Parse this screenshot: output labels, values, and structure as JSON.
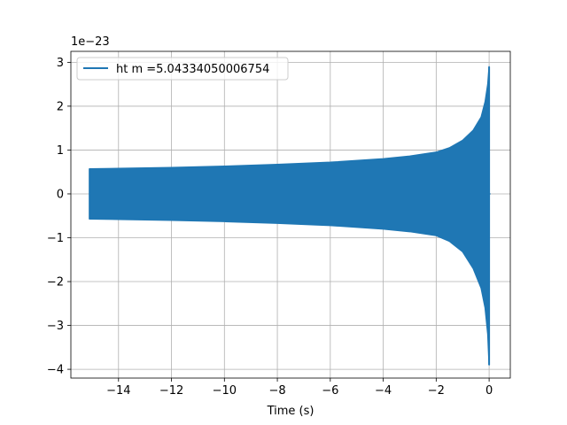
{
  "chart_data": {
    "type": "line",
    "title": "",
    "xlabel": "Time (s)",
    "ylabel": "",
    "y_offset_label": "1e−23",
    "xlim": [
      -15.8,
      0.8
    ],
    "ylim": [
      -4.2,
      3.25
    ],
    "x_ticks": [
      -14,
      -12,
      -10,
      -8,
      -6,
      -4,
      -2,
      0
    ],
    "x_tick_labels": [
      "−14",
      "−12",
      "−10",
      "−8",
      "−6",
      "−4",
      "−2",
      "0"
    ],
    "y_ticks": [
      -4,
      -3,
      -2,
      -1,
      0,
      1,
      2,
      3
    ],
    "y_tick_labels": [
      "−4",
      "−3",
      "−2",
      "−1",
      "0",
      "1",
      "2",
      "3"
    ],
    "grid": true,
    "legend": {
      "position": "top-left"
    },
    "series": [
      {
        "name": "ht m =5.04334050006754",
        "color": "#1f77b4",
        "x": [
          -15.1,
          -14,
          -12,
          -10,
          -8,
          -6,
          -4,
          -3,
          -2,
          -1.5,
          -1,
          -0.6,
          -0.3,
          -0.15,
          -0.05,
          0
        ],
        "envelope_upper": [
          0.57,
          0.58,
          0.6,
          0.63,
          0.67,
          0.72,
          0.8,
          0.86,
          0.95,
          1.05,
          1.22,
          1.45,
          1.75,
          2.1,
          2.5,
          2.9
        ],
        "envelope_lower": [
          -0.57,
          -0.58,
          -0.6,
          -0.63,
          -0.67,
          -0.72,
          -0.8,
          -0.86,
          -0.95,
          -1.08,
          -1.32,
          -1.7,
          -2.15,
          -2.6,
          -3.2,
          -3.9
        ]
      }
    ]
  }
}
